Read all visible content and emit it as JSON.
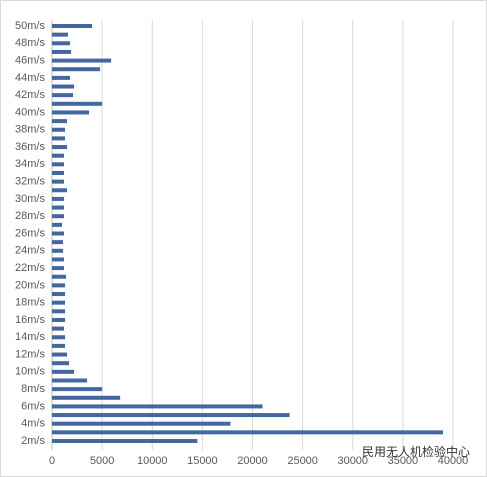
{
  "chart_data": {
    "type": "hbar",
    "categories": [
      "2m/s",
      null,
      "4m/s",
      null,
      "6m/s",
      null,
      "8m/s",
      null,
      "10m/s",
      null,
      "12m/s",
      null,
      "14m/s",
      null,
      "16m/s",
      null,
      "18m/s",
      null,
      "20m/s",
      null,
      "22m/s",
      null,
      "24m/s",
      null,
      "26m/s",
      null,
      "28m/s",
      null,
      "30m/s",
      null,
      "32m/s",
      null,
      "34m/s",
      null,
      "36m/s",
      null,
      "38m/s",
      null,
      "40m/s",
      null,
      "42m/s",
      null,
      "44m/s",
      null,
      "46m/s",
      null,
      "48m/s",
      null,
      "50m/s"
    ],
    "values": [
      14500,
      39000,
      17800,
      23700,
      21000,
      6800,
      5000,
      3500,
      2200,
      1700,
      1500,
      1300,
      1300,
      1200,
      1300,
      1300,
      1300,
      1300,
      1300,
      1400,
      1200,
      1200,
      1100,
      1100,
      1200,
      1000,
      1200,
      1200,
      1200,
      1500,
      1200,
      1200,
      1200,
      1200,
      1500,
      1300,
      1300,
      1500,
      3700,
      5000,
      2100,
      2200,
      1800,
      4800,
      5900,
      1900,
      1800,
      1600,
      4000
    ],
    "color": "#44679f",
    "xlim": [
      0,
      40000
    ],
    "xticks": [
      0,
      5000,
      10000,
      15000,
      20000,
      25000,
      30000,
      35000,
      40000
    ],
    "grid": true,
    "watermark": "民用无人机检验中心"
  }
}
